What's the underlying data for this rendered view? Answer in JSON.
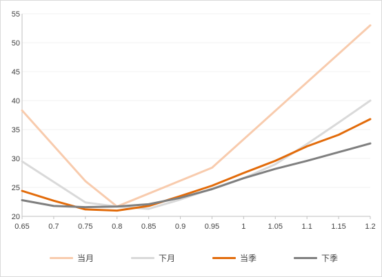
{
  "chart_data": {
    "type": "line",
    "title": "",
    "xlabel": "",
    "ylabel": "",
    "x": [
      "0.65",
      "0.7",
      "0.75",
      "0.8",
      "0.85",
      "0.9",
      "0.95",
      "1",
      "1.05",
      "1.1",
      "1.15",
      "1.2"
    ],
    "ylim": [
      20,
      55
    ],
    "yticks": [
      20,
      25,
      30,
      35,
      40,
      45,
      50,
      55
    ],
    "grid": true,
    "legend_position": "bottom",
    "series": [
      {
        "name": "当月",
        "color": "#F8CBAD",
        "values": [
          38.3,
          null,
          26.1,
          21.7,
          null,
          null,
          28.4,
          null,
          null,
          null,
          null,
          53.0
        ]
      },
      {
        "name": "下月",
        "color": "#D9D9D9",
        "values": [
          29.5,
          null,
          22.4,
          21.7,
          21.3,
          22.9,
          24.8,
          26.6,
          29.0,
          32.5,
          36.2,
          40.0
        ]
      },
      {
        "name": "当季",
        "color": "#E26B0A",
        "values": [
          24.4,
          22.7,
          21.2,
          21.0,
          21.8,
          23.5,
          25.3,
          27.5,
          29.6,
          32.1,
          34.1,
          36.8
        ]
      },
      {
        "name": "下季",
        "color": "#7F7F7F",
        "values": [
          22.8,
          21.8,
          21.6,
          21.7,
          22.1,
          23.2,
          24.7,
          26.6,
          28.2,
          29.6,
          31.1,
          32.6
        ]
      }
    ]
  }
}
